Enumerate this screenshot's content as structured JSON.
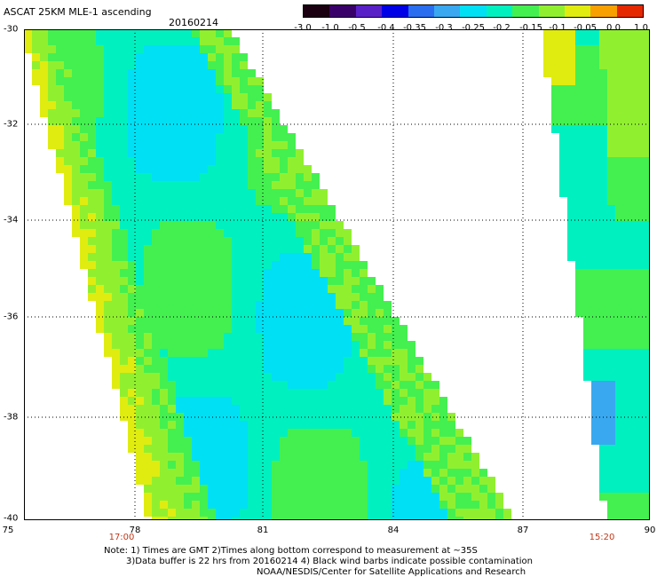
{
  "header": {
    "title": "ASCAT 25KM MLE-1 ascending",
    "date": "20160214"
  },
  "colorbar": {
    "labels": [
      "-3.0",
      "-1.0",
      "-0.5",
      "-0.4",
      "-0.35",
      "-0.3",
      "-0.25",
      "-0.2",
      "-0.15",
      "-0.1",
      "-0.05",
      "0.0",
      "1.0"
    ],
    "colors": [
      "#1a0010",
      "#3a006a",
      "#5a20c8",
      "#0000e6",
      "#2a6ef0",
      "#39a8f0",
      "#00e0f4",
      "#00f0c0",
      "#44f050",
      "#90f030",
      "#e0ec10",
      "#f8a000",
      "#e62800"
    ]
  },
  "map": {
    "lat_labels": [
      "-30",
      "-32",
      "-34",
      "-36",
      "-38",
      "-40"
    ],
    "lon_labels": [
      "75",
      "78",
      "81",
      "84",
      "87",
      "90"
    ],
    "time_labels": [
      "17:00",
      "15:20"
    ]
  },
  "notes": {
    "line1": "Note: 1) Times are GMT 2)Times along bottom correspond to measurement at ~35S",
    "line2": "3)Data buffer is 22 hrs from 20160214 4) Black wind barbs indicate possible contamination",
    "line3": "NOAA/NESDIS/Center for Satellite Applications and Research"
  }
}
